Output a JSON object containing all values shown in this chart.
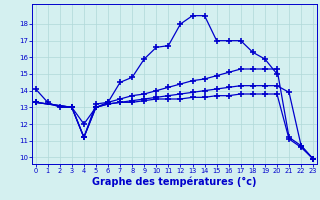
{
  "xlabel": "Graphe des températures (°c)",
  "background_color": "#d4f0f0",
  "grid_color": "#b0d8d8",
  "line_color": "#0000cc",
  "x_min": -0.3,
  "x_max": 23.3,
  "y_min": 9.6,
  "y_max": 19.2,
  "yticks": [
    10,
    11,
    12,
    13,
    14,
    15,
    16,
    17,
    18
  ],
  "xticks": [
    0,
    1,
    2,
    3,
    4,
    5,
    6,
    7,
    8,
    9,
    10,
    11,
    12,
    13,
    14,
    15,
    16,
    17,
    18,
    19,
    20,
    21,
    22,
    23
  ],
  "lines": [
    {
      "x": [
        0,
        1,
        2,
        3,
        4,
        5,
        6,
        7,
        8,
        9,
        10,
        11,
        12,
        13,
        14,
        15,
        16,
        17,
        18,
        19,
        20
      ],
      "y": [
        14.1,
        13.3,
        13.0,
        13.0,
        11.2,
        13.2,
        13.3,
        14.5,
        14.8,
        15.9,
        16.6,
        16.7,
        18.0,
        18.5,
        18.5,
        17.0,
        17.0,
        17.0,
        16.3,
        15.9,
        15.0
      ]
    },
    {
      "x": [
        0,
        3,
        4,
        5,
        6,
        7,
        8,
        9,
        10,
        11,
        12,
        13,
        14,
        15,
        16,
        17,
        18,
        19,
        20,
        21,
        22,
        23
      ],
      "y": [
        13.3,
        13.0,
        12.0,
        13.0,
        13.3,
        13.5,
        13.7,
        13.8,
        14.0,
        14.2,
        14.4,
        14.6,
        14.7,
        14.9,
        15.1,
        15.3,
        15.3,
        15.3,
        15.3,
        11.2,
        10.7,
        9.9
      ]
    },
    {
      "x": [
        0,
        3,
        4,
        5,
        6,
        7,
        8,
        9,
        10,
        11,
        12,
        13,
        14,
        15,
        16,
        17,
        18,
        19,
        20,
        21,
        22,
        23
      ],
      "y": [
        13.3,
        13.0,
        11.2,
        13.0,
        13.2,
        13.3,
        13.4,
        13.5,
        13.6,
        13.7,
        13.8,
        13.9,
        14.0,
        14.1,
        14.2,
        14.3,
        14.3,
        14.3,
        14.3,
        13.9,
        10.7,
        9.9
      ]
    },
    {
      "x": [
        0,
        3,
        4,
        5,
        6,
        7,
        8,
        9,
        10,
        11,
        12,
        13,
        14,
        15,
        16,
        17,
        18,
        19,
        20,
        21,
        22,
        23
      ],
      "y": [
        13.3,
        13.0,
        11.2,
        13.0,
        13.2,
        13.3,
        13.3,
        13.4,
        13.5,
        13.5,
        13.5,
        13.6,
        13.6,
        13.7,
        13.7,
        13.8,
        13.8,
        13.8,
        13.8,
        11.1,
        10.6,
        9.9
      ]
    }
  ]
}
